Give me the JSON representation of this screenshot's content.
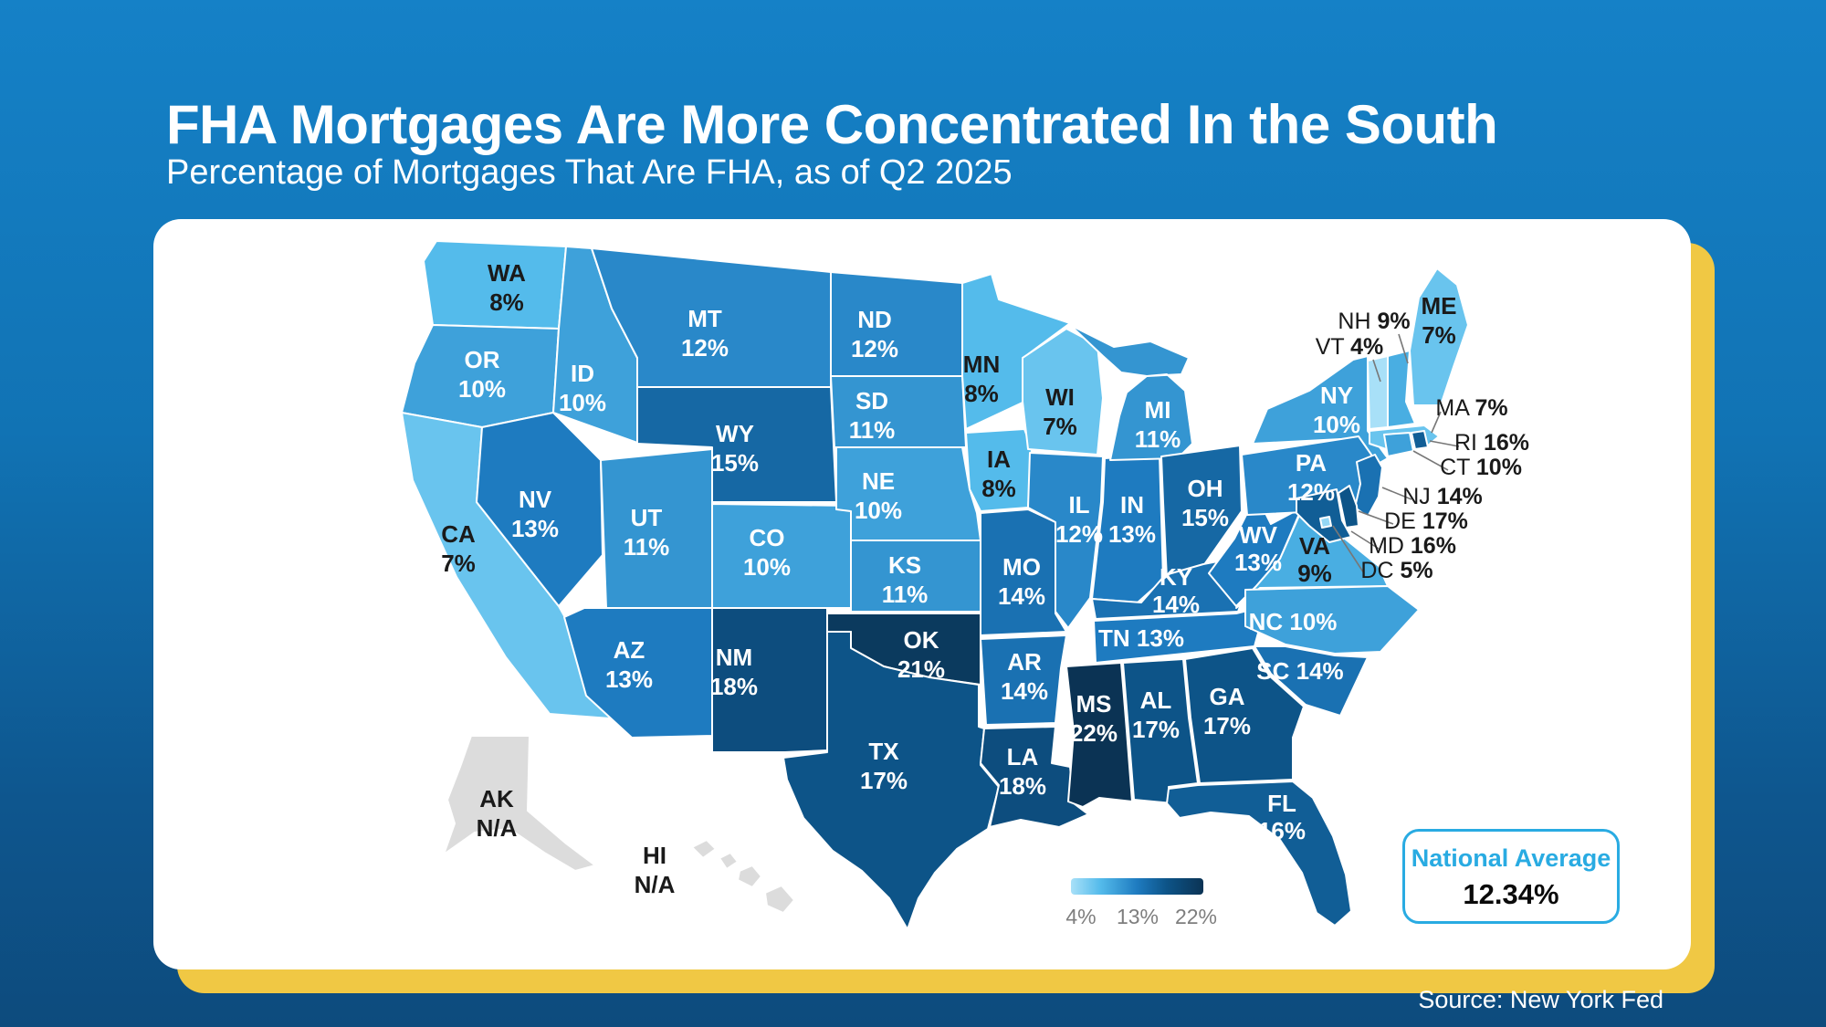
{
  "header": {
    "title": "FHA Mortgages Are More Concentrated In the South",
    "subtitle": "Percentage of Mortgages That Are FHA, as of Q2 2025"
  },
  "source": "Source: New York Fed",
  "national_average": {
    "label": "National Average",
    "value": "12.34%"
  },
  "legend": {
    "ticks": [
      "4%",
      "13%",
      "22%"
    ],
    "min": 4,
    "max": 22
  },
  "colors": {
    "scale_stops": [
      [
        4,
        "#A8E0F8"
      ],
      [
        8,
        "#54BBEB"
      ],
      [
        13,
        "#1E7BC0"
      ],
      [
        17,
        "#0D5488"
      ],
      [
        22,
        "#0B3354"
      ]
    ],
    "na_fill": "#DCDCDC",
    "accent": "#29ABE2",
    "card_shadow": "#F0C844",
    "label_dark": "#1A1A1A",
    "label_light": "#FFFFFF"
  },
  "chart_data": {
    "type": "choropleth",
    "title": "Percentage of Mortgages That Are FHA, as of Q2 2025",
    "unit": "percent of mortgages that are FHA",
    "as_of": "Q2 2025",
    "national_average": 12.34,
    "color_scale": {
      "min": 4,
      "mid": 13,
      "max": 22
    },
    "states": [
      {
        "abbr": "WA",
        "value": 8,
        "display": "8%"
      },
      {
        "abbr": "OR",
        "value": 10,
        "display": "10%"
      },
      {
        "abbr": "CA",
        "value": 7,
        "display": "7%"
      },
      {
        "abbr": "ID",
        "value": 10,
        "display": "10%"
      },
      {
        "abbr": "NV",
        "value": 13,
        "display": "13%"
      },
      {
        "abbr": "UT",
        "value": 11,
        "display": "11%"
      },
      {
        "abbr": "AZ",
        "value": 13,
        "display": "13%"
      },
      {
        "abbr": "MT",
        "value": 12,
        "display": "12%"
      },
      {
        "abbr": "WY",
        "value": 15,
        "display": "15%"
      },
      {
        "abbr": "CO",
        "value": 10,
        "display": "10%"
      },
      {
        "abbr": "NM",
        "value": 18,
        "display": "18%"
      },
      {
        "abbr": "ND",
        "value": 12,
        "display": "12%"
      },
      {
        "abbr": "SD",
        "value": 11,
        "display": "11%"
      },
      {
        "abbr": "NE",
        "value": 10,
        "display": "10%"
      },
      {
        "abbr": "KS",
        "value": 11,
        "display": "11%"
      },
      {
        "abbr": "OK",
        "value": 21,
        "display": "21%"
      },
      {
        "abbr": "TX",
        "value": 17,
        "display": "17%"
      },
      {
        "abbr": "MN",
        "value": 8,
        "display": "8%"
      },
      {
        "abbr": "IA",
        "value": 8,
        "display": "8%"
      },
      {
        "abbr": "MO",
        "value": 14,
        "display": "14%"
      },
      {
        "abbr": "AR",
        "value": 14,
        "display": "14%"
      },
      {
        "abbr": "LA",
        "value": 18,
        "display": "18%"
      },
      {
        "abbr": "WI",
        "value": 7,
        "display": "7%"
      },
      {
        "abbr": "IL",
        "value": 12,
        "display": "12%"
      },
      {
        "abbr": "IN",
        "value": 13,
        "display": "13%"
      },
      {
        "abbr": "MI",
        "value": 11,
        "display": "11%"
      },
      {
        "abbr": "OH",
        "value": 15,
        "display": "15%"
      },
      {
        "abbr": "KY",
        "value": 14,
        "display": "14%"
      },
      {
        "abbr": "TN",
        "value": 13,
        "display": "13%"
      },
      {
        "abbr": "MS",
        "value": 22,
        "display": "22%"
      },
      {
        "abbr": "AL",
        "value": 17,
        "display": "17%"
      },
      {
        "abbr": "GA",
        "value": 17,
        "display": "17%"
      },
      {
        "abbr": "FL",
        "value": 16,
        "display": "16%"
      },
      {
        "abbr": "WV",
        "value": 13,
        "display": "13%"
      },
      {
        "abbr": "VA",
        "value": 9,
        "display": "9%"
      },
      {
        "abbr": "NC",
        "value": 10,
        "display": "10%"
      },
      {
        "abbr": "SC",
        "value": 14,
        "display": "14%"
      },
      {
        "abbr": "NY",
        "value": 10,
        "display": "10%"
      },
      {
        "abbr": "PA",
        "value": 12,
        "display": "12%"
      },
      {
        "abbr": "ME",
        "value": 7,
        "display": "7%"
      },
      {
        "abbr": "VT",
        "value": 4,
        "display": "4%"
      },
      {
        "abbr": "NH",
        "value": 9,
        "display": "9%"
      },
      {
        "abbr": "MA",
        "value": 7,
        "display": "7%"
      },
      {
        "abbr": "RI",
        "value": 16,
        "display": "16%"
      },
      {
        "abbr": "CT",
        "value": 10,
        "display": "10%"
      },
      {
        "abbr": "NJ",
        "value": 14,
        "display": "14%"
      },
      {
        "abbr": "DE",
        "value": 17,
        "display": "17%"
      },
      {
        "abbr": "MD",
        "value": 16,
        "display": "16%"
      },
      {
        "abbr": "DC",
        "value": 5,
        "display": "5%"
      },
      {
        "abbr": "AK",
        "value": null,
        "display": "N/A"
      },
      {
        "abbr": "HI",
        "value": null,
        "display": "N/A"
      }
    ]
  }
}
